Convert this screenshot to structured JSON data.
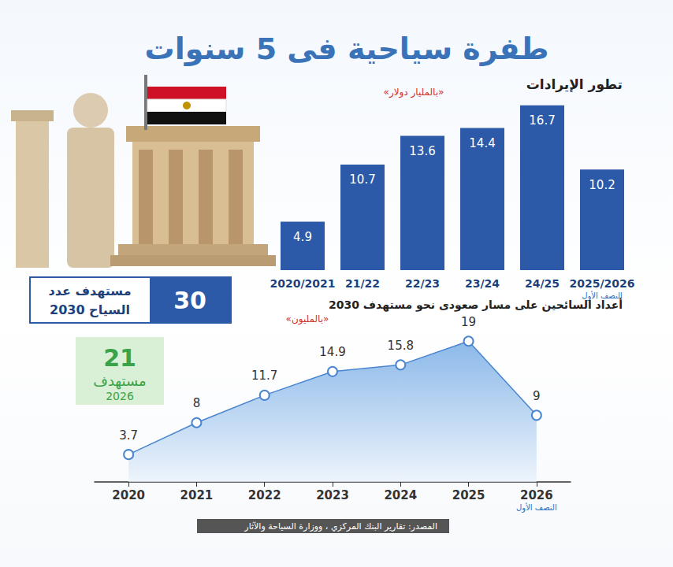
{
  "title": "طفرة سياحية فى 5 سنوات",
  "source": "المصدر: تقارير البنك المركزي ، ووزارة السياحة والآثار",
  "targets": [
    {
      "value": 30,
      "label": "مستهدف عدد السياح 2030",
      "color": "#2c5aa8"
    },
    {
      "value": 21,
      "label": "مستهدف 2026",
      "color": "#3aa348"
    }
  ],
  "chart_data": [
    {
      "type": "bar",
      "title": "تطور الإيرادات",
      "subtitle": "«بالمليار دولار»",
      "categories": [
        "2020/2021",
        "21/22",
        "22/23",
        "23/24",
        "24/25",
        "2025/2026"
      ],
      "category_notes": [
        null,
        null,
        null,
        null,
        null,
        "النصف الأول"
      ],
      "values": [
        4.9,
        10.7,
        13.6,
        14.4,
        16.7,
        10.2
      ],
      "color": "#2c5aa8",
      "ylim": [
        0,
        17
      ],
      "data_labels": true,
      "grid": false,
      "tick_labels": "x"
    },
    {
      "type": "line",
      "title": "أعداد السائحين على مسار صعودى نحو مستهدف 2030",
      "subtitle": "«بالمليون»",
      "categories": [
        "2020",
        "2021",
        "2022",
        "2023",
        "2024",
        "2025",
        "2026"
      ],
      "category_notes": [
        null,
        null,
        null,
        null,
        null,
        null,
        "النصف الأول"
      ],
      "values": [
        3.7,
        8,
        11.7,
        14.9,
        15.8,
        19,
        9
      ],
      "color": "#4a86cf",
      "marker": "circle",
      "ylim": [
        0,
        22
      ],
      "data_labels": true,
      "grid": false,
      "tick_labels": "x"
    }
  ]
}
